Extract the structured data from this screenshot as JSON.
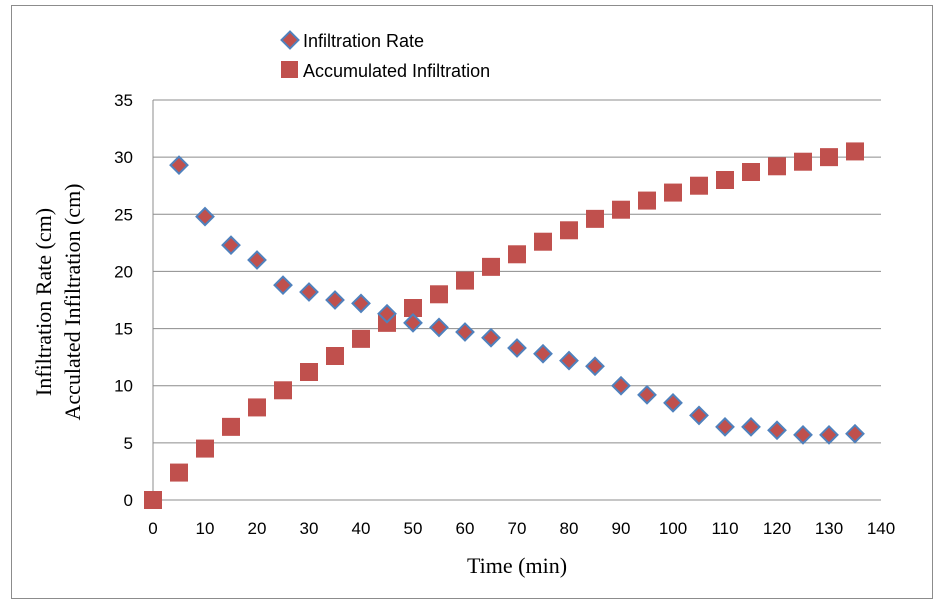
{
  "chart_data": {
    "type": "scatter",
    "xlabel": "Time (min)",
    "ylabel_line1": "Infiltration Rate (cm)",
    "ylabel_line2": "Acculated Infiltration (cm)",
    "xlim": [
      0,
      140
    ],
    "ylim": [
      0,
      35
    ],
    "x_ticks": [
      0,
      10,
      20,
      30,
      40,
      50,
      60,
      70,
      80,
      90,
      100,
      110,
      120,
      130,
      140
    ],
    "y_ticks": [
      0,
      5,
      10,
      15,
      20,
      25,
      30,
      35
    ],
    "grid": "horizontal",
    "legend_position": "top",
    "series": [
      {
        "name": "Infiltration Rate",
        "marker": "diamond",
        "color": "#c0504d",
        "edge_color": "#4f81bd",
        "x": [
          5,
          10,
          15,
          20,
          25,
          30,
          35,
          40,
          45,
          50,
          55,
          60,
          65,
          70,
          75,
          80,
          85,
          90,
          95,
          100,
          105,
          110,
          115,
          120,
          125,
          130,
          135
        ],
        "y": [
          29.3,
          24.8,
          22.3,
          21.0,
          18.8,
          18.2,
          17.5,
          17.2,
          16.3,
          15.5,
          15.1,
          14.7,
          14.2,
          13.3,
          12.8,
          12.2,
          11.7,
          10.0,
          9.2,
          8.5,
          7.4,
          6.4,
          6.4,
          6.1,
          5.7,
          5.7,
          5.8
        ]
      },
      {
        "name": "Accumulated Infiltration",
        "marker": "square",
        "color": "#c0504d",
        "x": [
          0,
          5,
          10,
          15,
          20,
          25,
          30,
          35,
          40,
          45,
          50,
          55,
          60,
          65,
          70,
          75,
          80,
          85,
          90,
          95,
          100,
          105,
          110,
          115,
          120,
          125,
          130,
          135
        ],
        "y": [
          0,
          2.4,
          4.5,
          6.4,
          8.1,
          9.6,
          11.2,
          12.6,
          14.1,
          15.5,
          16.8,
          18.0,
          19.2,
          20.4,
          21.5,
          22.6,
          23.6,
          24.6,
          25.4,
          26.2,
          26.9,
          27.5,
          28.0,
          28.7,
          29.2,
          29.6,
          30.0,
          30.5
        ]
      }
    ]
  }
}
